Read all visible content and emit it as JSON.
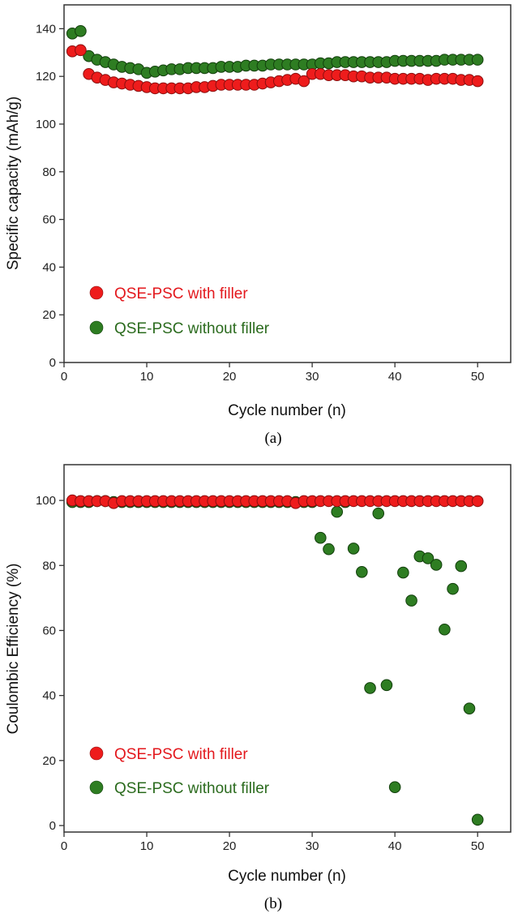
{
  "colors": {
    "red": "#ee1c1c",
    "red_edge": "#8a0f0f",
    "green": "#2e7d22",
    "green_edge": "#123f0c",
    "legend_red_text": "#e3181d",
    "legend_green_text": "#2b6b1e"
  },
  "chart_data": [
    {
      "type": "scatter",
      "panel_label": "(a)",
      "xlabel": "Cycle number (n)",
      "ylabel": "Specific capacity (mAh/g)",
      "xlim": [
        0,
        54
      ],
      "ylim": [
        0,
        150
      ],
      "xticks": [
        0,
        10,
        20,
        30,
        40,
        50
      ],
      "yticks": [
        0,
        20,
        40,
        60,
        80,
        100,
        120,
        140
      ],
      "legend_position": "bottom-left",
      "series": [
        {
          "name": "QSE-PSC with filler",
          "color_key": "red",
          "x": [
            1,
            2,
            3,
            4,
            5,
            6,
            7,
            8,
            9,
            10,
            11,
            12,
            13,
            14,
            15,
            16,
            17,
            18,
            19,
            20,
            21,
            22,
            23,
            24,
            25,
            26,
            27,
            28,
            29,
            30,
            31,
            32,
            33,
            34,
            35,
            36,
            37,
            38,
            39,
            40,
            41,
            42,
            43,
            44,
            45,
            46,
            47,
            48,
            49,
            50
          ],
          "values": [
            130.5,
            131,
            121,
            119.5,
            118.5,
            117.5,
            117,
            116.5,
            116,
            115.5,
            115,
            115,
            115,
            115,
            115,
            115.5,
            115.5,
            116,
            116.5,
            116.5,
            116.5,
            116.5,
            116.5,
            117,
            117.5,
            118,
            118.5,
            119,
            118,
            121,
            121,
            120.5,
            120.5,
            120.5,
            120,
            120,
            119.5,
            119.5,
            119.5,
            119,
            119,
            119,
            119,
            118.5,
            119,
            119,
            119,
            118.5,
            118.5,
            118
          ]
        },
        {
          "name": "QSE-PSC without filler",
          "color_key": "green",
          "x": [
            1,
            2,
            3,
            4,
            5,
            6,
            7,
            8,
            9,
            10,
            11,
            12,
            13,
            14,
            15,
            16,
            17,
            18,
            19,
            20,
            21,
            22,
            23,
            24,
            25,
            26,
            27,
            28,
            29,
            30,
            31,
            32,
            33,
            34,
            35,
            36,
            37,
            38,
            39,
            40,
            41,
            42,
            43,
            44,
            45,
            46,
            47,
            48,
            49,
            50
          ],
          "values": [
            138,
            139,
            128.5,
            127,
            126,
            125,
            124,
            123.5,
            123,
            121.5,
            122,
            122.5,
            123,
            123,
            123.5,
            123.5,
            123.5,
            123.5,
            124,
            124,
            124,
            124.5,
            124.5,
            124.5,
            125,
            125,
            125,
            125,
            125,
            125,
            125.5,
            125.5,
            126,
            126,
            126,
            126,
            126,
            126,
            126,
            126.5,
            126.5,
            126.5,
            126.5,
            126.5,
            126.5,
            127,
            127,
            127,
            127,
            127
          ]
        }
      ]
    },
    {
      "type": "scatter",
      "panel_label": "(b)",
      "xlabel": "Cycle number (n)",
      "ylabel": "Coulombic Efficiency (%)",
      "xlim": [
        0,
        54
      ],
      "ylim": [
        -2,
        111
      ],
      "xticks": [
        0,
        10,
        20,
        30,
        40,
        50
      ],
      "yticks": [
        0,
        20,
        40,
        60,
        80,
        100
      ],
      "legend_position": "bottom-left",
      "series": [
        {
          "name": "QSE-PSC  with filler",
          "color_key": "red",
          "x": [
            1,
            2,
            3,
            4,
            5,
            6,
            7,
            8,
            9,
            10,
            11,
            12,
            13,
            14,
            15,
            16,
            17,
            18,
            19,
            20,
            21,
            22,
            23,
            24,
            25,
            26,
            27,
            28,
            29,
            30,
            31,
            32,
            33,
            34,
            35,
            36,
            37,
            38,
            39,
            40,
            41,
            42,
            43,
            44,
            45,
            46,
            47,
            48,
            49,
            50
          ],
          "values": [
            100,
            99.8,
            99.8,
            99.8,
            99.8,
            99.2,
            99.8,
            99.8,
            99.8,
            99.8,
            99.8,
            99.8,
            99.8,
            99.8,
            99.8,
            99.8,
            99.8,
            99.8,
            99.8,
            99.8,
            99.8,
            99.8,
            99.8,
            99.8,
            99.8,
            99.8,
            99.8,
            99.2,
            99.8,
            99.8,
            99.8,
            99.8,
            99.8,
            99.8,
            99.8,
            99.8,
            99.8,
            99.8,
            99.8,
            99.8,
            99.8,
            99.8,
            99.8,
            99.8,
            99.8,
            99.8,
            99.8,
            99.8,
            99.8,
            99.8
          ]
        },
        {
          "name": "QSE-PSC without filler",
          "color_key": "green",
          "x": [
            1,
            2,
            3,
            4,
            5,
            6,
            7,
            8,
            9,
            10,
            11,
            12,
            13,
            14,
            15,
            16,
            17,
            18,
            19,
            20,
            21,
            22,
            23,
            24,
            25,
            26,
            27,
            28,
            29,
            30,
            31,
            32,
            33,
            34,
            35,
            36,
            37,
            38,
            39,
            40,
            41,
            42,
            43,
            44,
            45,
            46,
            47,
            48,
            49,
            50
          ],
          "values": [
            99.5,
            99.5,
            99.5,
            99.8,
            99.8,
            99.5,
            99.5,
            99.5,
            99.5,
            99.5,
            99.5,
            99.5,
            99.5,
            99.5,
            99.5,
            99.5,
            99.5,
            99.5,
            99.5,
            99.5,
            99.5,
            99.5,
            99.5,
            99.5,
            99.5,
            99.5,
            99.5,
            99.5,
            99.5,
            99.5,
            88.5,
            85,
            96.5,
            99.5,
            85.2,
            78,
            42.3,
            96,
            43.2,
            11.8,
            77.8,
            69.2,
            82.8,
            82.2,
            80.2,
            60.3,
            72.8,
            79.8,
            36,
            1.8
          ]
        }
      ]
    }
  ]
}
